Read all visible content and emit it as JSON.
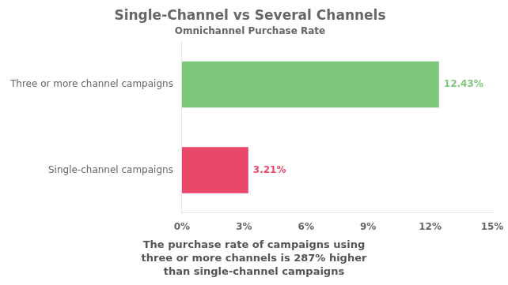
{
  "chart_data": {
    "type": "bar",
    "orientation": "horizontal",
    "title": "Single-Channel vs Several Channels",
    "subtitle": "Omnichannel Purchase Rate",
    "categories": [
      "Single-channel campaigns",
      "Three or more channel campaigns"
    ],
    "values": [
      3.21,
      12.43
    ],
    "value_labels": [
      "3.21%",
      "12.43%"
    ],
    "data_labels": true,
    "colors": [
      "#e8476a",
      "#7dc87a"
    ],
    "xlim": [
      0,
      15
    ],
    "xticks": [
      {
        "value": 0,
        "label": "0%"
      },
      {
        "value": 3,
        "label": "3%"
      },
      {
        "value": 6,
        "label": "6%"
      },
      {
        "value": 9,
        "label": "9%"
      },
      {
        "value": 12,
        "label": "12%"
      },
      {
        "value": 15,
        "label": "15%"
      }
    ],
    "grid": false,
    "annotations": [
      "The purchase rate of campaigns using\nthree or more channels is 287% higher\nthan single-channel campaigns"
    ]
  }
}
